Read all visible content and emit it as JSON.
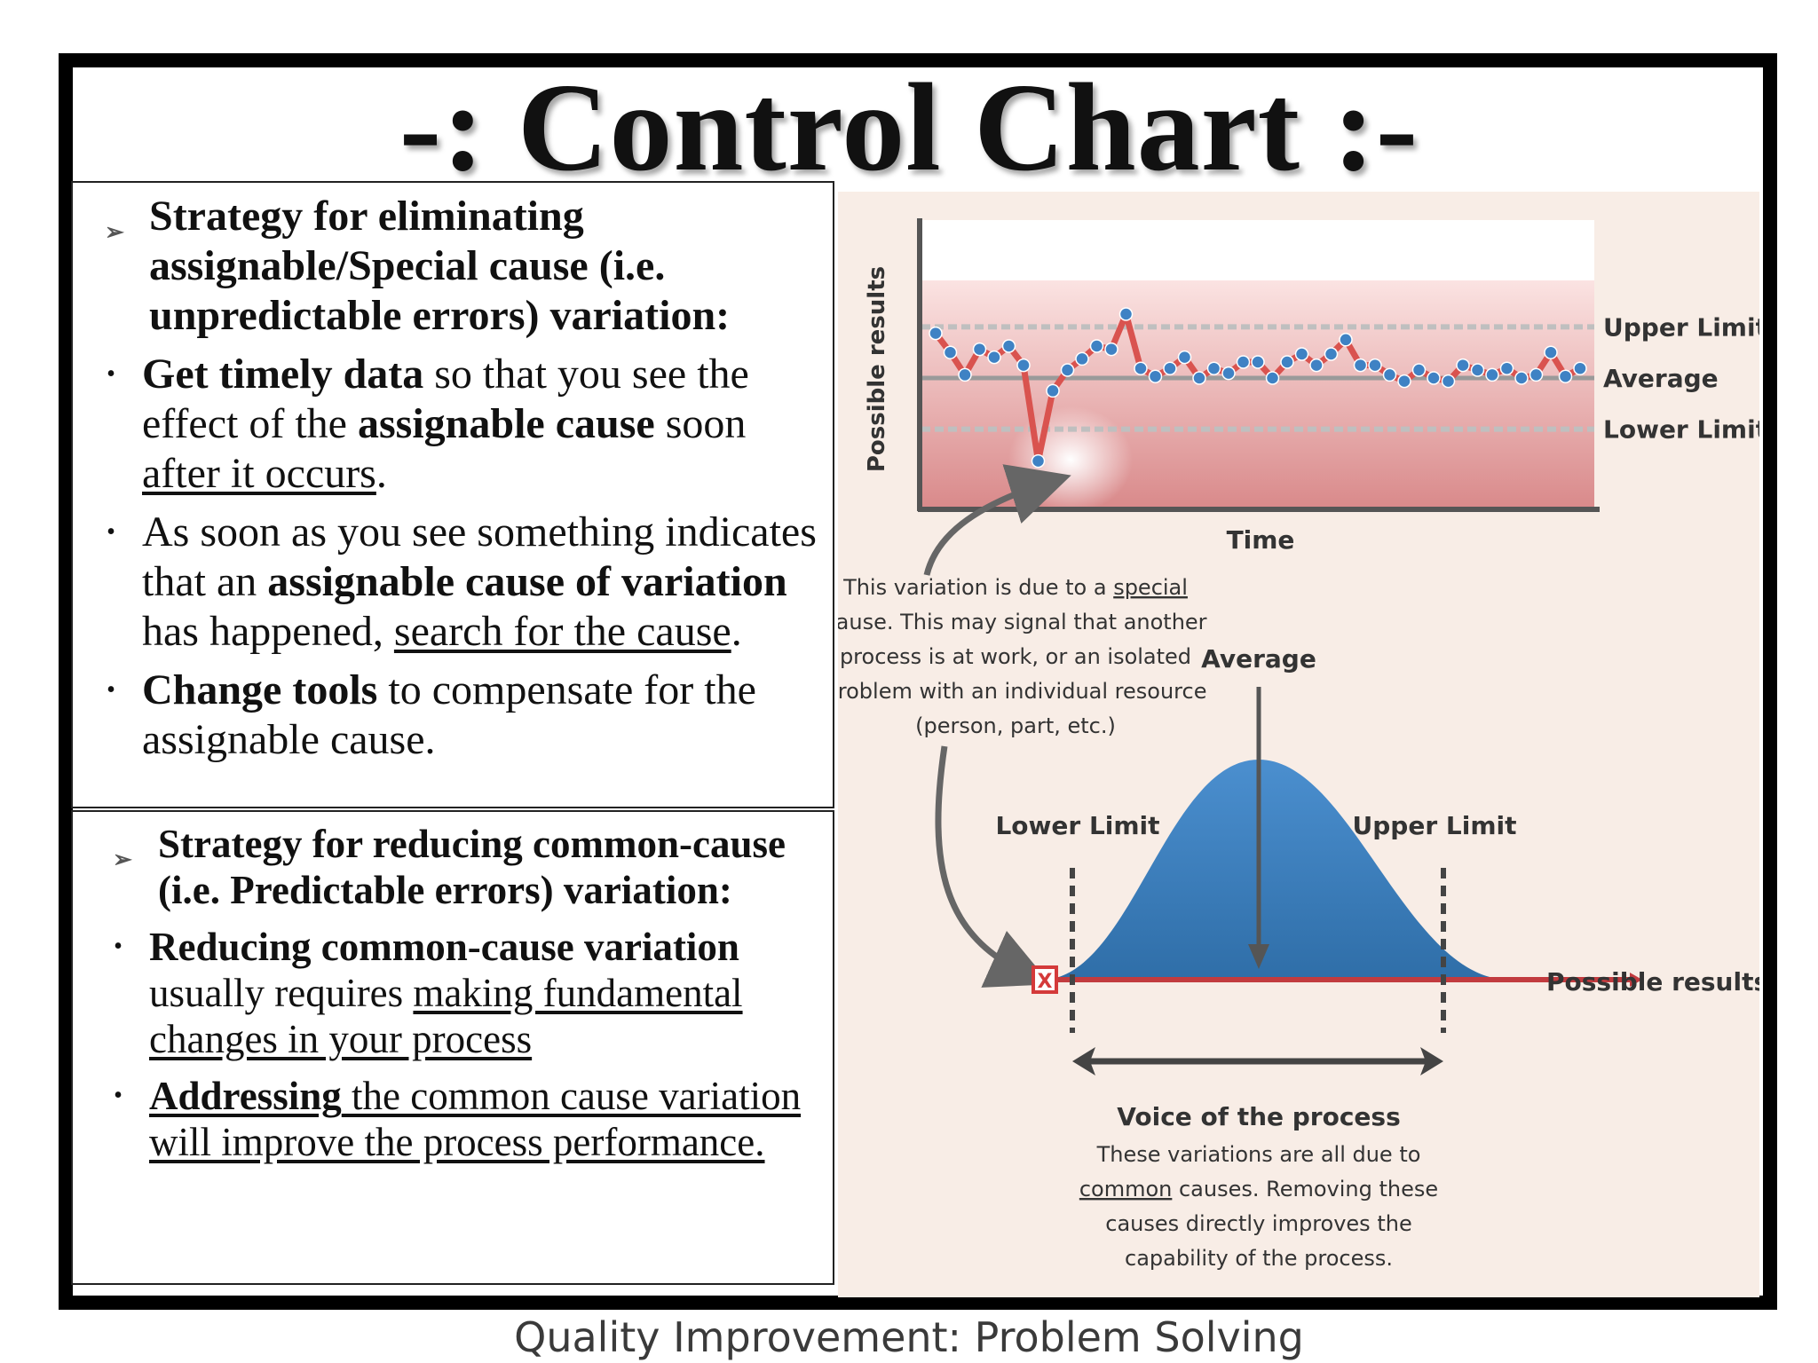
{
  "slide": {
    "title": "-: Control Chart :-",
    "footer": "Quality Improvement: Problem Solving"
  },
  "special_cause": {
    "heading": "Strategy for eliminating assignable/Special cause (i.e. unpredictable errors) variation:",
    "bullets": [
      {
        "bold1": "Get timely data",
        "text1": " so that you see the effect of the ",
        "bold2": "assignable cause",
        "text2": " soon ",
        "underline": "after it occurs",
        "text3": "."
      },
      {
        "text1": "As soon as you see something indicates that an ",
        "bold1": "assignable cause of variation",
        "text2": " has happened, ",
        "underline": "search for the cause",
        "text3": "."
      },
      {
        "bold1": "Change tools",
        "text1": " to compensate for the assignable cause."
      }
    ]
  },
  "common_cause": {
    "heading": "Strategy for reducing common-cause (i.e. Predictable errors) variation:",
    "bullets": [
      {
        "bold1": "Reducing common-cause variation",
        "text1": " usually requires ",
        "underline": "making fundamental changes in your process"
      },
      {
        "underline_bold": "Addressing",
        "underline": " the common cause variation will improve the process performance."
      }
    ]
  },
  "figure": {
    "control_chart": {
      "y_axis_label": "Possible results",
      "x_axis_label": "Time",
      "upper_limit_label": "Upper Limit",
      "average_label": "Average",
      "lower_limit_label": "Lower Limit",
      "limits": {
        "upper": 0.82,
        "average": 0.5,
        "lower": 0.18
      },
      "points": [
        0.78,
        0.66,
        0.52,
        0.68,
        0.63,
        0.7,
        0.58,
        -0.02,
        0.42,
        0.55,
        0.62,
        0.7,
        0.68,
        0.9,
        0.56,
        0.51,
        0.56,
        0.63,
        0.5,
        0.56,
        0.53,
        0.6,
        0.6,
        0.5,
        0.6,
        0.65,
        0.58,
        0.65,
        0.74,
        0.58,
        0.58,
        0.52,
        0.48,
        0.55,
        0.5,
        0.48,
        0.58,
        0.55,
        0.52,
        0.56,
        0.5,
        0.52,
        0.66,
        0.51,
        0.56
      ],
      "series_color": "#d9534f",
      "point_color": "#3f82c4"
    },
    "special_note_lines": [
      {
        "pre": "This variation is due to a ",
        "u": "special"
      },
      {
        "pre": "cause. This may signal that another"
      },
      {
        "pre": "process is at work, or an isolated"
      },
      {
        "pre": "problem with an individual resource"
      },
      {
        "pre": "(person, part, etc.)"
      }
    ],
    "distribution": {
      "average_label": "Average",
      "lower_limit_label": "Lower Limit",
      "upper_limit_label": "Upper Limit",
      "x_axis_label": "Possible results",
      "outlier_mark": "X",
      "curve_color": "#3f82c4"
    },
    "voice_title": "Voice of the process",
    "voice_lines": [
      {
        "pre": "These variations are all due to"
      },
      {
        "u": "common",
        "pre": " causes. Removing these"
      },
      {
        "pre": "causes directly improves the"
      },
      {
        "pre": "capability of the process."
      }
    ]
  }
}
